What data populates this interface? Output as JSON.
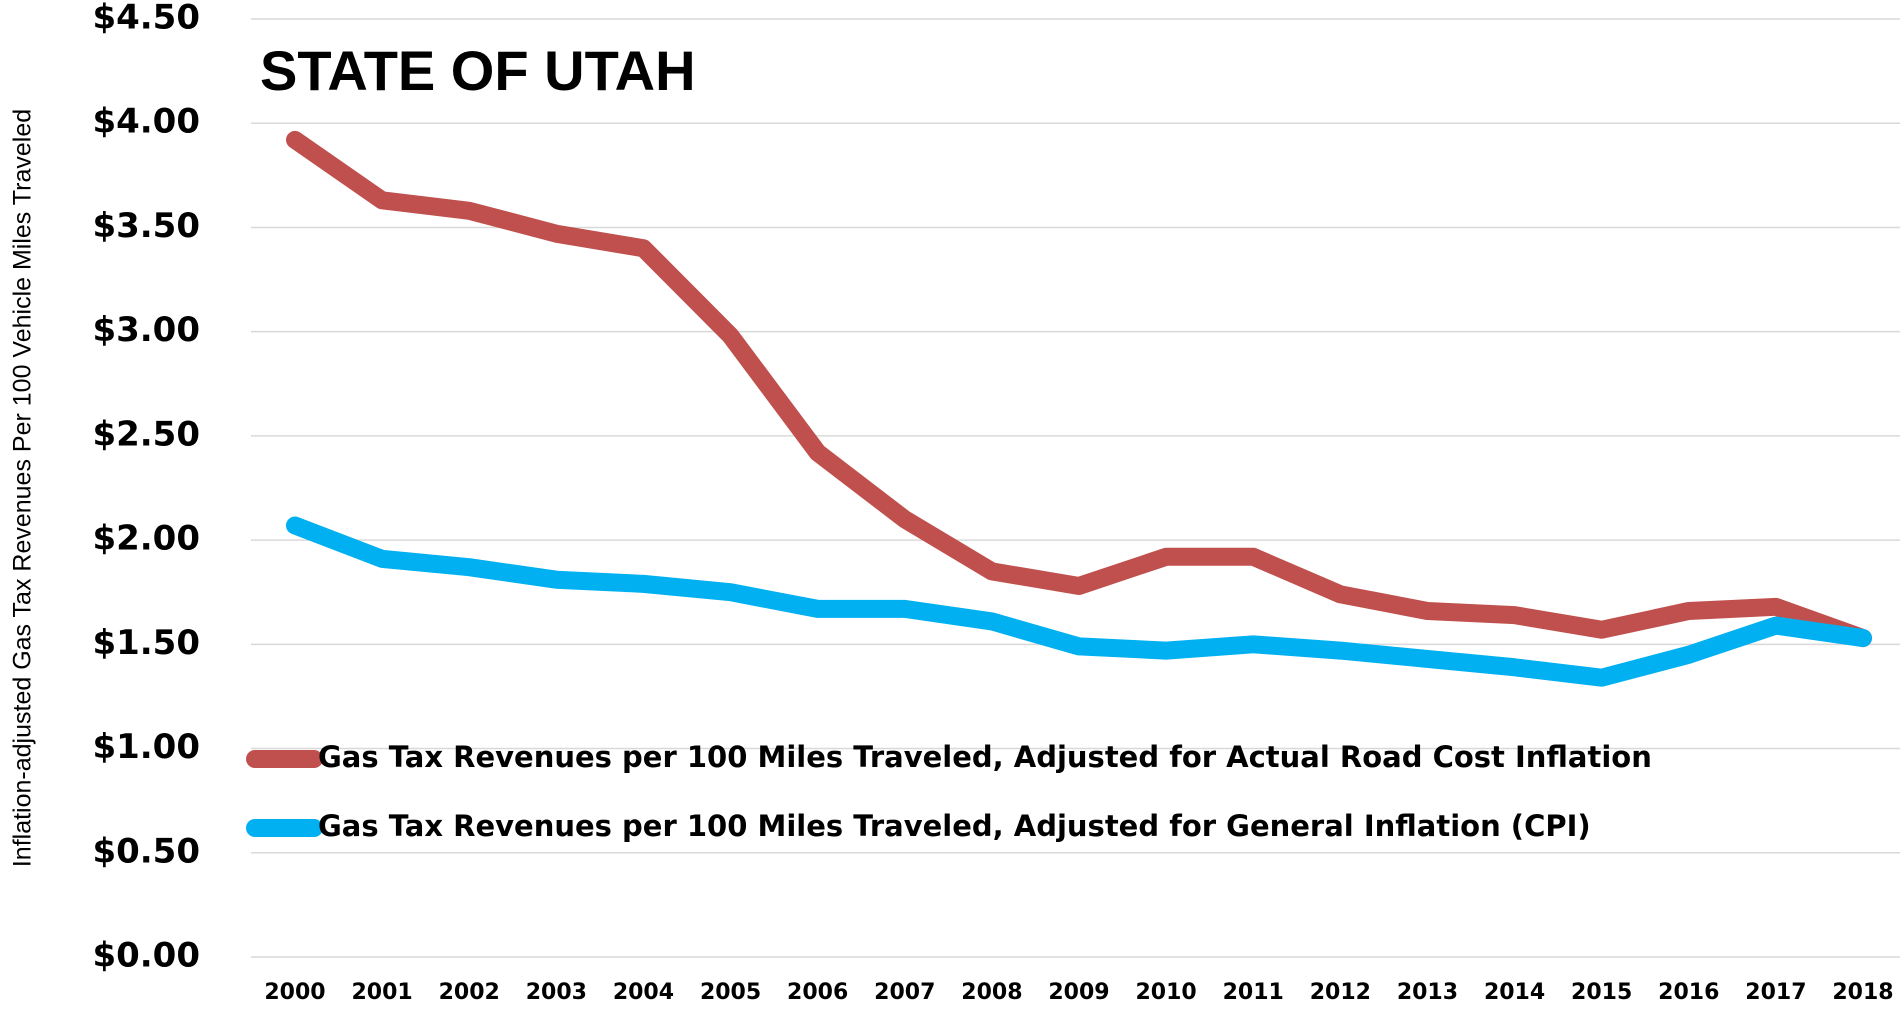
{
  "chart_data": {
    "type": "line",
    "title": "STATE OF UTAH",
    "y_label": "Inflation-adjusted Gas Tax Revenues Per 100 Vehicle Miles Traveled",
    "categories": [
      "2000",
      "2001",
      "2002",
      "2003",
      "2004",
      "2005",
      "2006",
      "2007",
      "2008",
      "2009",
      "2010",
      "2011",
      "2012",
      "2013",
      "2014",
      "2015",
      "2016",
      "2017",
      "2018"
    ],
    "series": [
      {
        "name": "Gas Tax Revenues per 100 Miles Traveled, Adjusted for Actual Road Cost Inflation",
        "color": "#c0504d",
        "values": [
          3.92,
          3.63,
          3.58,
          3.47,
          3.4,
          2.98,
          2.42,
          2.1,
          1.85,
          1.78,
          1.92,
          1.92,
          1.74,
          1.66,
          1.64,
          1.57,
          1.66,
          1.68,
          1.53
        ]
      },
      {
        "name": "Gas Tax Revenues per 100 Miles Traveled, Adjusted for General Inflation (CPI)",
        "color": "#00b0f0",
        "values": [
          2.07,
          1.91,
          1.87,
          1.81,
          1.79,
          1.75,
          1.67,
          1.67,
          1.61,
          1.49,
          1.47,
          1.5,
          1.47,
          1.43,
          1.39,
          1.34,
          1.45,
          1.59,
          1.53
        ]
      }
    ],
    "ylim": [
      0,
      4.5
    ],
    "yticks": [
      {
        "value": 0,
        "label": "$0.00"
      },
      {
        "value": 0.5,
        "label": "$0.50"
      },
      {
        "value": 1,
        "label": "$1.00"
      },
      {
        "value": 1.5,
        "label": "$1.50"
      },
      {
        "value": 2,
        "label": "$2.00"
      },
      {
        "value": 2.5,
        "label": "$2.50"
      },
      {
        "value": 3,
        "label": "$3.00"
      },
      {
        "value": 3.5,
        "label": "$3.50"
      },
      {
        "value": 4,
        "label": "$4.00"
      },
      {
        "value": 4.5,
        "label": "$4.50"
      }
    ],
    "grid": true
  }
}
